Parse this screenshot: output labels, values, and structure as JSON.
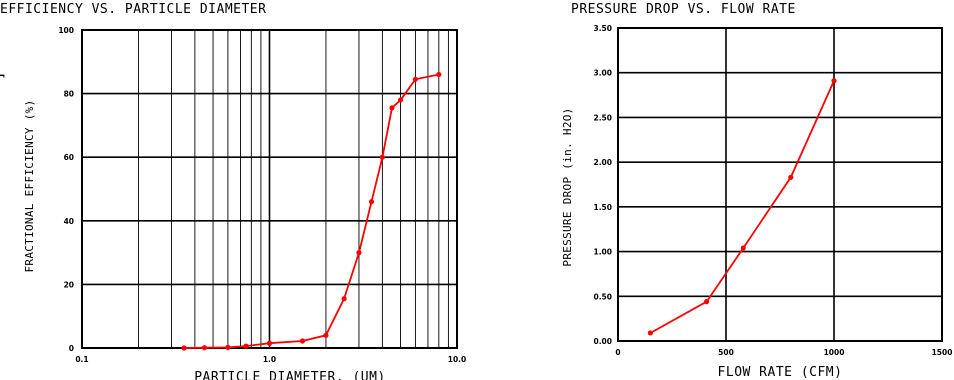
{
  "chart_data": [
    {
      "type": "line",
      "title": "EFFICIENCY VS. PARTICLE DIAMETER",
      "xlabel": "PARTICLE DIAMETER, (UM)",
      "ylabel": "FRACTIONAL EFFICIENCY (%)",
      "x_scale": "log",
      "xlim": [
        0.1,
        10.0
      ],
      "ylim": [
        0,
        100
      ],
      "x_ticks": [
        "0.1",
        "1.0",
        "10.0"
      ],
      "y_ticks": [
        "0",
        "20",
        "40",
        "60",
        "80",
        "100"
      ],
      "color": "#ff0000",
      "series": [
        {
          "x": [
            0.35,
            0.45,
            0.6,
            0.75,
            1.0,
            1.5,
            2.0,
            2.5,
            3.0,
            3.5,
            4.0,
            4.5,
            5.0,
            6.0,
            8.0
          ],
          "y": [
            0.0,
            0.1,
            0.2,
            0.6,
            1.5,
            2.2,
            4.0,
            15.5,
            30.0,
            46.0,
            60.0,
            75.5,
            78.0,
            84.5,
            86.0
          ]
        }
      ]
    },
    {
      "type": "line",
      "title": "PRESSURE DROP VS. FLOW RATE",
      "xlabel": "FLOW RATE (CFM)",
      "ylabel": "PRESSURE DROP (in. H2O)",
      "xlim": [
        0,
        1500
      ],
      "ylim": [
        0,
        3.5
      ],
      "x_ticks": [
        "0",
        "500",
        "1000",
        "1500"
      ],
      "y_ticks": [
        "0.00",
        "0.50",
        "1.00",
        "1.50",
        "2.00",
        "2.50",
        "3.00",
        "3.50"
      ],
      "color": "#ff0000",
      "series": [
        {
          "x": [
            150,
            410,
            580,
            800,
            1000
          ],
          "y": [
            0.09,
            0.44,
            1.04,
            1.83,
            2.91
          ]
        }
      ]
    }
  ],
  "labels": {
    "left_partial_text": "r"
  }
}
